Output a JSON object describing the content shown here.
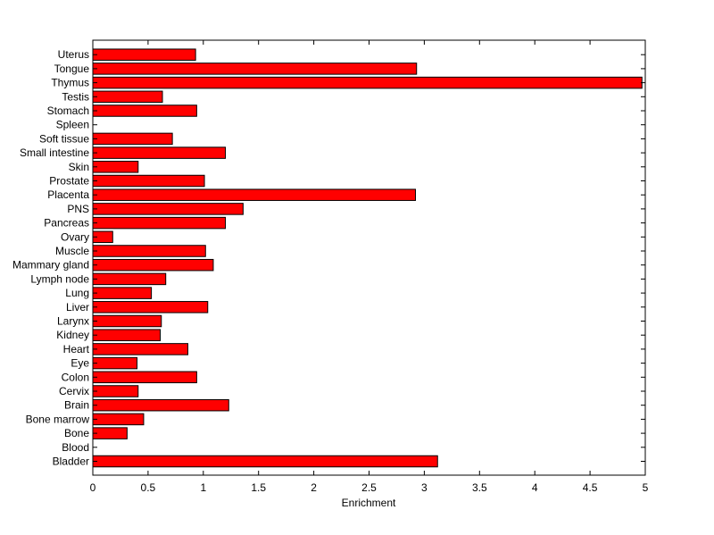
{
  "chart_data": {
    "type": "bar",
    "orientation": "horizontal",
    "xlabel": "Enrichment",
    "ylabel": "",
    "title": "",
    "xlim": [
      0,
      5
    ],
    "xticks": [
      "0",
      "0.5",
      "1",
      "1.5",
      "2",
      "2.5",
      "3",
      "3.5",
      "4",
      "4.5",
      "5"
    ],
    "grid": false,
    "bar_color": "#ff0000",
    "categories": [
      "Bladder",
      "Blood",
      "Bone",
      "Bone marrow",
      "Brain",
      "Cervix",
      "Colon",
      "Eye",
      "Heart",
      "Kidney",
      "Larynx",
      "Liver",
      "Lung",
      "Lymph node",
      "Mammary gland",
      "Muscle",
      "Ovary",
      "Pancreas",
      "PNS",
      "Placenta",
      "Prostate",
      "Skin",
      "Small intestine",
      "Soft tissue",
      "Spleen",
      "Stomach",
      "Testis",
      "Thymus",
      "Tongue",
      "Uterus"
    ],
    "values": [
      3.12,
      0,
      0.31,
      0.46,
      1.23,
      0.41,
      0.94,
      0.4,
      0.86,
      0.61,
      0.62,
      1.04,
      0.53,
      0.66,
      1.09,
      1.02,
      0.18,
      1.2,
      1.36,
      2.92,
      1.01,
      0.41,
      1.2,
      0.72,
      0,
      0.94,
      0.63,
      4.97,
      2.93,
      0.93
    ]
  }
}
